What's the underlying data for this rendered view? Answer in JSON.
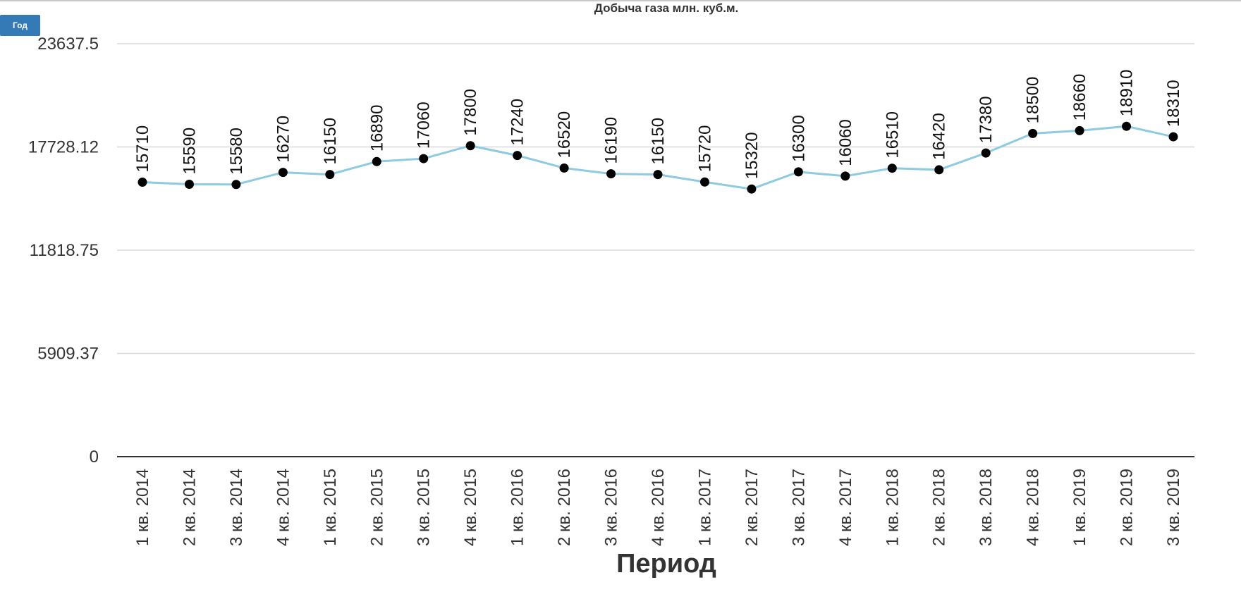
{
  "controls": {
    "period_button_label": "Год"
  },
  "chart_data": {
    "type": "line",
    "title": "Добыча газа млн. куб.м.",
    "xlabel": "Период",
    "ylabel": "",
    "ylim": [
      0,
      23637.5
    ],
    "yticks": [
      "0",
      "5909.37",
      "11818.75",
      "17728.12",
      "23637.5"
    ],
    "ytick_values": [
      0,
      5909.37,
      11818.75,
      17728.12,
      23637.5
    ],
    "grid": true,
    "legend": "none",
    "categories": [
      "1 кв. 2014",
      "2 кв. 2014",
      "3 кв. 2014",
      "4 кв. 2014",
      "1 кв. 2015",
      "2 кв. 2015",
      "3 кв. 2015",
      "4 кв. 2015",
      "1 кв. 2016",
      "2 кв. 2016",
      "3 кв. 2016",
      "4 кв. 2016",
      "1 кв. 2017",
      "2 кв. 2017",
      "3 кв. 2017",
      "4 кв. 2017",
      "1 кв. 2018",
      "2 кв. 2018",
      "3 кв. 2018",
      "4 кв. 2018",
      "1 кв. 2019",
      "2 кв. 2019",
      "3 кв. 2019"
    ],
    "series": [
      {
        "values": [
          15710,
          15590,
          15580,
          16270,
          16150,
          16890,
          17060,
          17800,
          17240,
          16520,
          16190,
          16150,
          15720,
          15320,
          16300,
          16060,
          16510,
          16420,
          17380,
          18500,
          18660,
          18910,
          18310
        ]
      }
    ],
    "colors": {
      "line": "#8ecae0",
      "marker": "#000000",
      "grid": "#d8d8d8",
      "axis": "#333333",
      "button": "#337ab7"
    }
  }
}
